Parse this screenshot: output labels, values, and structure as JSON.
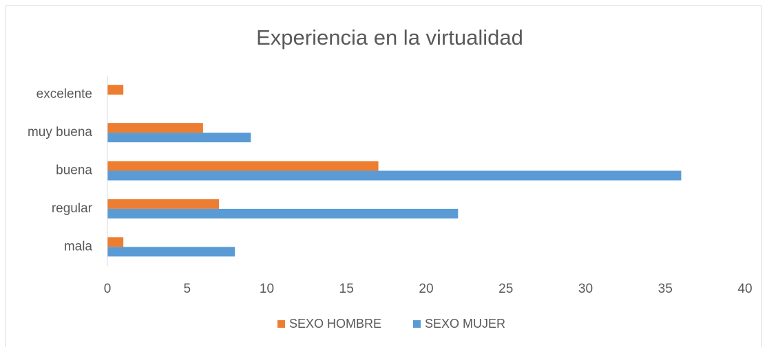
{
  "chart_data": {
    "type": "bar",
    "orientation": "horizontal",
    "title": "Experiencia en la virtualidad",
    "categories": [
      "mala",
      "regular",
      "buena",
      "muy buena",
      "excelente"
    ],
    "series": [
      {
        "name": "SEXO HOMBRE",
        "color": "#ed7d31",
        "values": [
          1,
          7,
          17,
          6,
          1
        ]
      },
      {
        "name": "SEXO MUJER",
        "color": "#5b9bd5",
        "values": [
          8,
          22,
          36,
          9,
          0
        ]
      }
    ],
    "xlim": [
      0,
      40
    ],
    "xticks": [
      0,
      5,
      10,
      15,
      20,
      25,
      30,
      35,
      40
    ],
    "grid": false,
    "legend": "bottom"
  }
}
